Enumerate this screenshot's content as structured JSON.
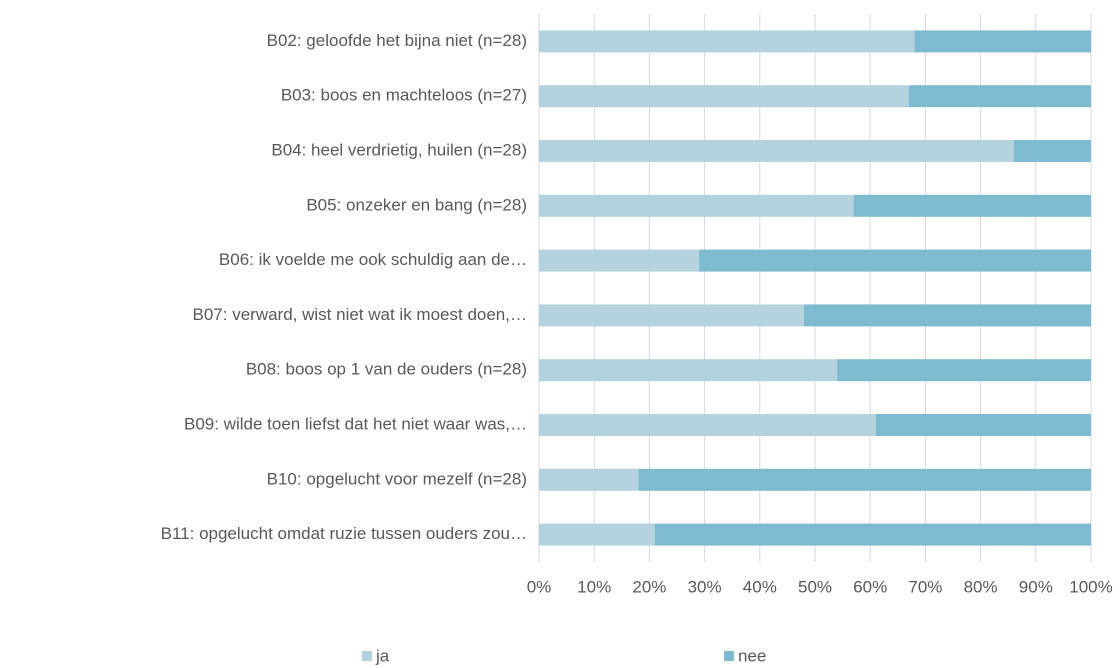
{
  "chart_data": {
    "type": "stacked_barh",
    "categories": [
      "B02: geloofde het bijna niet (n=28)",
      "B03: boos en machteloos (n=27)",
      "B04: heel verdrietig, huilen (n=28)",
      "B05: onzeker en bang (n=28)",
      "B06: ik voelde me ook schuldig aan de…",
      "B07: verward, wist niet wat ik moest doen,…",
      "B08: boos op 1 van de ouders (n=28)",
      "B09: wilde toen liefst dat het niet waar was,…",
      "B10: opgelucht voor mezelf (n=28)",
      "B11: opgelucht omdat ruzie tussen ouders zou…"
    ],
    "series": [
      {
        "name": "ja",
        "color": "#b5d3df",
        "values": [
          68,
          67,
          86,
          57,
          29,
          48,
          54,
          61,
          18,
          21
        ]
      },
      {
        "name": "nee",
        "color": "#7fbbd0",
        "values": [
          32,
          33,
          14,
          43,
          71,
          52,
          46,
          39,
          82,
          79
        ]
      }
    ],
    "xlim": [
      0,
      100
    ],
    "xticks": [
      {
        "value": 0,
        "label": "0%"
      },
      {
        "value": 10,
        "label": "10%"
      },
      {
        "value": 20,
        "label": "20%"
      },
      {
        "value": 30,
        "label": "30%"
      },
      {
        "value": 40,
        "label": "40%"
      },
      {
        "value": 50,
        "label": "50%"
      },
      {
        "value": 60,
        "label": "60%"
      },
      {
        "value": 70,
        "label": "70%"
      },
      {
        "value": 80,
        "label": "80%"
      },
      {
        "value": 90,
        "label": "90%"
      },
      {
        "value": 100,
        "label": "100%"
      }
    ],
    "grid": true,
    "legend": "bottom"
  }
}
